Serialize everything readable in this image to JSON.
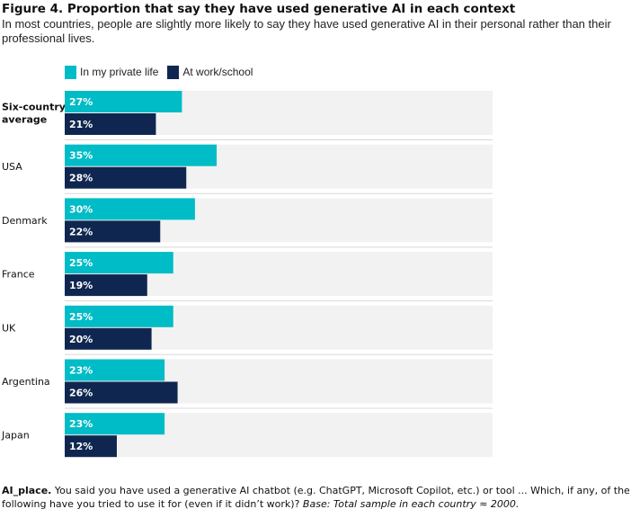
{
  "title": "Figure 4. Proportion that say they have used generative AI in each context",
  "subtitle": "In most countries, people are slightly more likely to say they have used generative AI in their personal rather than their professional lives.",
  "colors": {
    "private": "#00bcc6",
    "work": "#0f2750",
    "track": "#f2f2f2"
  },
  "chart_data": {
    "type": "bar",
    "orientation": "horizontal",
    "categories": [
      "Six-country average",
      "USA",
      "Denmark",
      "France",
      "UK",
      "Argentina",
      "Japan"
    ],
    "category_lines": [
      [
        "Six-country",
        "average"
      ],
      [
        "USA"
      ],
      [
        "Denmark"
      ],
      [
        "France"
      ],
      [
        "UK"
      ],
      [
        "Argentina"
      ],
      [
        "Japan"
      ]
    ],
    "series": [
      {
        "name": "In my private life",
        "values": [
          27,
          35,
          30,
          25,
          25,
          23,
          23
        ],
        "labels": [
          "27%",
          "35%",
          "30%",
          "25%",
          "25%",
          "23%",
          "23%"
        ]
      },
      {
        "name": "At work/school",
        "values": [
          21,
          28,
          22,
          19,
          20,
          26,
          12
        ],
        "labels": [
          "21%",
          "28%",
          "22%",
          "19%",
          "20%",
          "26%",
          "12%"
        ]
      }
    ],
    "xlim": [
      0,
      100
    ],
    "legend": "top-left",
    "grid": false
  },
  "footnote": {
    "question_id": "AI_place.",
    "question_text": " You said you have used a generative AI chatbot (e.g. ChatGPT, Microsoft Copilot, etc.) or tool ... Which, if any, of the following have you tried to use it for (even if it didn’t work)? ",
    "base": "Base: Total sample in each country ≈ 2000."
  }
}
